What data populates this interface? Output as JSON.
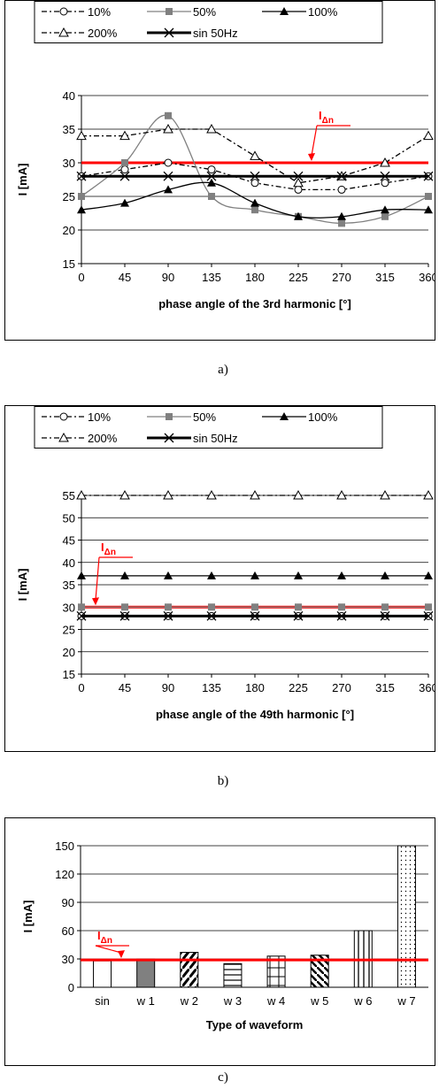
{
  "captions": {
    "a": "a)",
    "b": "b)",
    "c": "c)"
  },
  "threshold_label": {
    "main": "I",
    "sub": "Δn"
  },
  "colors": {
    "threshold": "#ff0000",
    "s10": "#000000",
    "s50": "#808080",
    "s100": "#000000",
    "s200": "#000000",
    "sin": "#000000"
  },
  "chart_data": [
    {
      "type": "line",
      "x": [
        0,
        45,
        90,
        135,
        180,
        225,
        270,
        315,
        360
      ],
      "xlabel": "phase angle of the 3rd harmonic [°]",
      "ylabel": "I [mA]",
      "ylim": [
        15,
        40
      ],
      "yticks": [
        15,
        20,
        25,
        30,
        35,
        40
      ],
      "grid": true,
      "legend_position": "top",
      "series": [
        {
          "name": "10%",
          "style": "dash-dot",
          "marker": "circle-open",
          "smooth": false,
          "values": [
            28,
            29,
            30,
            29,
            27,
            26,
            26,
            27,
            28
          ]
        },
        {
          "name": "50%",
          "style": "solid-gray",
          "marker": "square-filled",
          "smooth": true,
          "values": [
            25,
            30,
            37,
            25,
            23,
            22,
            21,
            22,
            25
          ]
        },
        {
          "name": "100%",
          "style": "solid",
          "marker": "triangle-filled",
          "smooth": true,
          "values": [
            23,
            24,
            26,
            27,
            24,
            22,
            22,
            23,
            23
          ]
        },
        {
          "name": "200%",
          "style": "dash-dot",
          "marker": "triangle-open",
          "smooth": false,
          "values": [
            34,
            34,
            35,
            35,
            31,
            27,
            28,
            30,
            34
          ]
        },
        {
          "name": "sin 50Hz",
          "style": "thick",
          "marker": "cross",
          "smooth": false,
          "values": [
            28,
            28,
            28,
            28,
            28,
            28,
            28,
            28,
            28
          ]
        }
      ],
      "threshold": 30
    },
    {
      "type": "line",
      "x": [
        0,
        45,
        90,
        135,
        180,
        225,
        270,
        315,
        360
      ],
      "xlabel": "phase angle of the 49th harmonic [°]",
      "ylabel": "I [mA]",
      "ylim": [
        15,
        55
      ],
      "yticks": [
        15,
        20,
        25,
        30,
        35,
        40,
        45,
        50,
        55
      ],
      "grid": true,
      "legend_position": "top",
      "series": [
        {
          "name": "10%",
          "style": "dash-dot",
          "marker": "circle-open",
          "smooth": false,
          "values": [
            28,
            28,
            28,
            28,
            28,
            28,
            28,
            28,
            28
          ]
        },
        {
          "name": "50%",
          "style": "solid-gray",
          "marker": "square-filled",
          "smooth": false,
          "values": [
            30,
            30,
            30,
            30,
            30,
            30,
            30,
            30,
            30
          ]
        },
        {
          "name": "100%",
          "style": "solid",
          "marker": "triangle-filled",
          "smooth": false,
          "values": [
            37,
            37,
            37,
            37,
            37,
            37,
            37,
            37,
            37
          ]
        },
        {
          "name": "200%",
          "style": "dash-dot",
          "marker": "triangle-open",
          "smooth": false,
          "values": [
            55,
            55,
            55,
            55,
            55,
            55,
            55,
            55,
            55
          ]
        },
        {
          "name": "sin 50Hz",
          "style": "thick",
          "marker": "cross",
          "smooth": false,
          "values": [
            28,
            28,
            28,
            28,
            28,
            28,
            28,
            28,
            28
          ]
        }
      ],
      "threshold": 30
    },
    {
      "type": "bar",
      "categories": [
        "sin",
        "w 1",
        "w 2",
        "w 3",
        "w 4",
        "w 5",
        "w 6",
        "w 7"
      ],
      "values": [
        28,
        30,
        37,
        25,
        33,
        34,
        60,
        150
      ],
      "patterns": [
        "blank",
        "gray",
        "zigzag",
        "hlines",
        "grid",
        "diag",
        "vlines",
        "dots"
      ],
      "xlabel": "Type of waveform",
      "ylabel": "I [mA]",
      "ylim": [
        0,
        150
      ],
      "yticks": [
        0,
        30,
        60,
        90,
        120,
        150
      ],
      "grid": true,
      "threshold": 29
    }
  ]
}
